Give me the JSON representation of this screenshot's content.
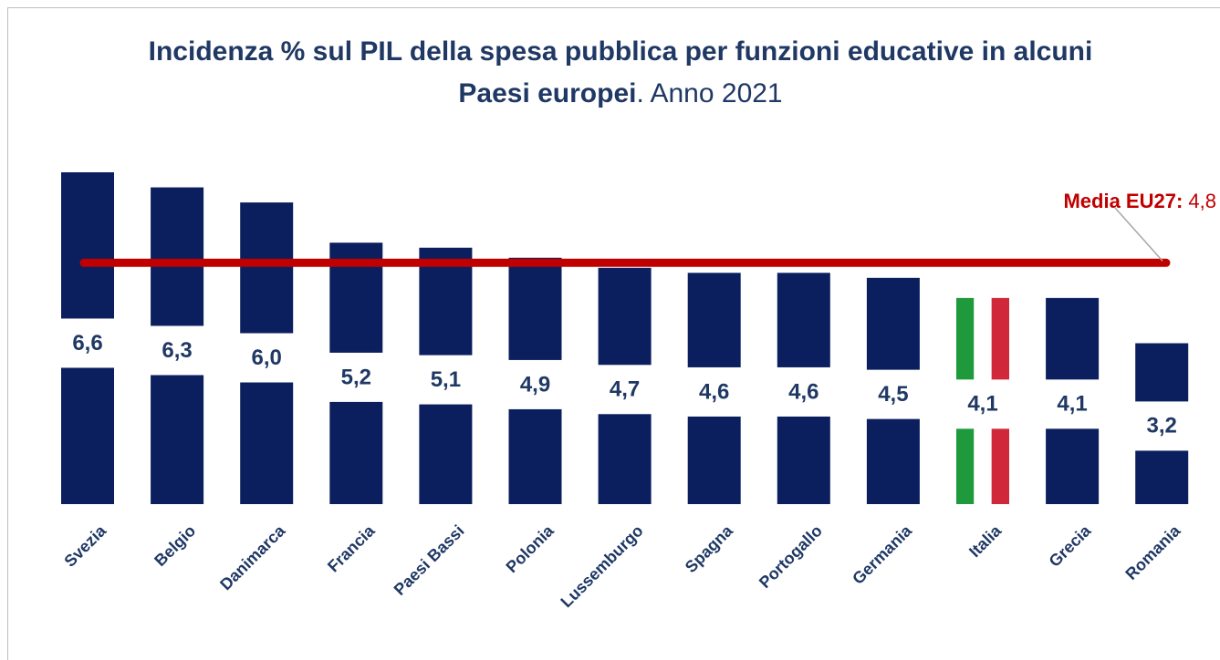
{
  "chart_data": {
    "type": "bar",
    "title": "Incidenza % sul PIL della spesa pubblica per funzioni educative in alcuni Paesi europei",
    "title_note": ". Anno 2021",
    "categories": [
      "Svezia",
      "Belgio",
      "Danimarca",
      "Francia",
      "Paesi Bassi",
      "Polonia",
      "Lussemburgo",
      "Spagna",
      "Portogallo",
      "Germania",
      "Italia",
      "Grecia",
      "Romania"
    ],
    "values": [
      6.6,
      6.3,
      6.0,
      5.2,
      5.1,
      4.9,
      4.7,
      4.6,
      4.6,
      4.5,
      4.1,
      4.1,
      3.2
    ],
    "value_labels": [
      "6,6",
      "6,3",
      "6,0",
      "5,2",
      "5,1",
      "4,9",
      "4,7",
      "4,6",
      "4,6",
      "4,5",
      "4,1",
      "4,1",
      "3,2"
    ],
    "color": "#0b1f5e",
    "flag": {
      "category": "Italia",
      "colors": [
        "#1e9a3c",
        "#ffffff",
        "#d0283a"
      ]
    },
    "reference_line": {
      "value": 4.8,
      "label": "Media EU27:",
      "value_label": "4,8",
      "color": "#c00000"
    }
  }
}
